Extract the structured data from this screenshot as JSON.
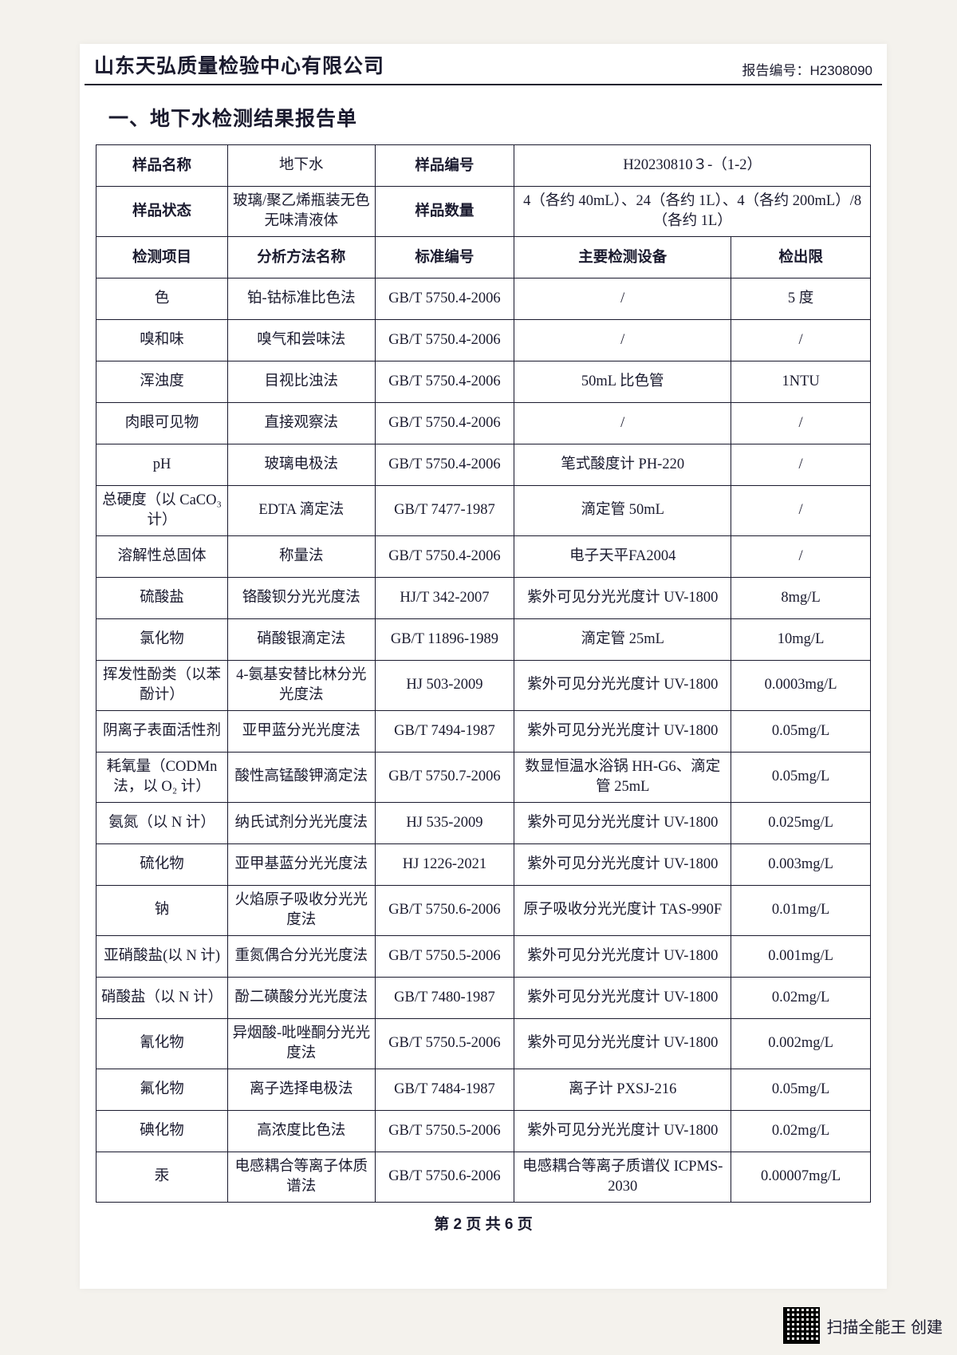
{
  "header": {
    "company": "山东天弘质量检验中心有限公司",
    "report_no_label": "报告编号：",
    "report_no": "H2308090"
  },
  "section_title": "一、地下水检测结果报告单",
  "sample_info": {
    "name_label": "样品名称",
    "name_value": "地下水",
    "id_label": "样品编号",
    "id_value": "H20230810３-（1-2）",
    "state_label": "样品状态",
    "state_value": "玻璃/聚乙烯瓶装无色无味清液体",
    "qty_label": "样品数量",
    "qty_value": "4（各约 40mL）、24（各约 1L）、4（各约 200mL）/8（各约 1L）"
  },
  "columns": {
    "c1": "检测项目",
    "c2": "分析方法名称",
    "c3": "标准编号",
    "c4": "主要检测设备",
    "c5": "检出限"
  },
  "rows": [
    {
      "a": "色",
      "b": "铂-钴标准比色法",
      "c": "GB/T 5750.4-2006",
      "d": "/",
      "e": "5 度"
    },
    {
      "a": "嗅和味",
      "b": "嗅气和尝味法",
      "c": "GB/T 5750.4-2006",
      "d": "/",
      "e": "/"
    },
    {
      "a": "浑浊度",
      "b": "目视比浊法",
      "c": "GB/T 5750.4-2006",
      "d": "50mL 比色管",
      "e": "1NTU"
    },
    {
      "a": "肉眼可见物",
      "b": "直接观察法",
      "c": "GB/T 5750.4-2006",
      "d": "/",
      "e": "/"
    },
    {
      "a": "pH",
      "b": "玻璃电极法",
      "c": "GB/T 5750.4-2006",
      "d": "笔式酸度计 PH-220",
      "e": "/"
    },
    {
      "a": "总硬度（以 CaCO₃ 计）",
      "b": "EDTA 滴定法",
      "c": "GB/T 7477-1987",
      "d": "滴定管 50mL",
      "e": "/"
    },
    {
      "a": "溶解性总固体",
      "b": "称量法",
      "c": "GB/T 5750.4-2006",
      "d": "电子天平FA2004",
      "e": "/"
    },
    {
      "a": "硫酸盐",
      "b": "铬酸钡分光光度法",
      "c": "HJ/T 342-2007",
      "d": "紫外可见分光光度计 UV-1800",
      "e": "8mg/L"
    },
    {
      "a": "氯化物",
      "b": "硝酸银滴定法",
      "c": "GB/T 11896-1989",
      "d": "滴定管 25mL",
      "e": "10mg/L"
    },
    {
      "a": "挥发性酚类（以苯酚计）",
      "b": "4-氨基安替比林分光光度法",
      "c": "HJ 503-2009",
      "d": "紫外可见分光光度计 UV-1800",
      "e": "0.0003mg/L"
    },
    {
      "a": "阴离子表面活性剂",
      "b": "亚甲蓝分光光度法",
      "c": "GB/T 7494-1987",
      "d": "紫外可见分光光度计 UV-1800",
      "e": "0.05mg/L"
    },
    {
      "a": "耗氧量（CODMn法，以 O₂ 计）",
      "b": "酸性高锰酸钾滴定法",
      "c": "GB/T 5750.7-2006",
      "d": "数显恒温水浴锅 HH-G6、滴定管 25mL",
      "e": "0.05mg/L"
    },
    {
      "a": "氨氮（以 N 计）",
      "b": "纳氏试剂分光光度法",
      "c": "HJ 535-2009",
      "d": "紫外可见分光光度计 UV-1800",
      "e": "0.025mg/L"
    },
    {
      "a": "硫化物",
      "b": "亚甲基蓝分光光度法",
      "c": "HJ 1226-2021",
      "d": "紫外可见分光光度计 UV-1800",
      "e": "0.003mg/L"
    },
    {
      "a": "钠",
      "b": "火焰原子吸收分光光度法",
      "c": "GB/T 5750.6-2006",
      "d": "原子吸收分光光度计 TAS-990F",
      "e": "0.01mg/L"
    },
    {
      "a": "亚硝酸盐(以 N 计)",
      "b": "重氮偶合分光光度法",
      "c": "GB/T 5750.5-2006",
      "d": "紫外可见分光光度计 UV-1800",
      "e": "0.001mg/L"
    },
    {
      "a": "硝酸盐（以 N 计）",
      "b": "酚二磺酸分光光度法",
      "c": "GB/T 7480-1987",
      "d": "紫外可见分光光度计 UV-1800",
      "e": "0.02mg/L"
    },
    {
      "a": "氰化物",
      "b": "异烟酸-吡唑酮分光光度法",
      "c": "GB/T 5750.5-2006",
      "d": "紫外可见分光光度计 UV-1800",
      "e": "0.002mg/L"
    },
    {
      "a": "氟化物",
      "b": "离子选择电极法",
      "c": "GB/T 7484-1987",
      "d": "离子计 PXSJ-216",
      "e": "0.05mg/L"
    },
    {
      "a": "碘化物",
      "b": "高浓度比色法",
      "c": "GB/T 5750.5-2006",
      "d": "紫外可见分光光度计 UV-1800",
      "e": "0.02mg/L"
    },
    {
      "a": "汞",
      "b": "电感耦合等离子体质谱法",
      "c": "GB/T 5750.6-2006",
      "d": "电感耦合等离子质谱仪 ICPMS-2030",
      "e": "0.00007mg/L"
    }
  ],
  "footer": "第 2 页 共 6 页",
  "qr_text": "扫描全能王 创建",
  "col_widths": [
    "17%",
    "19%",
    "18%",
    "28%",
    "18%"
  ]
}
